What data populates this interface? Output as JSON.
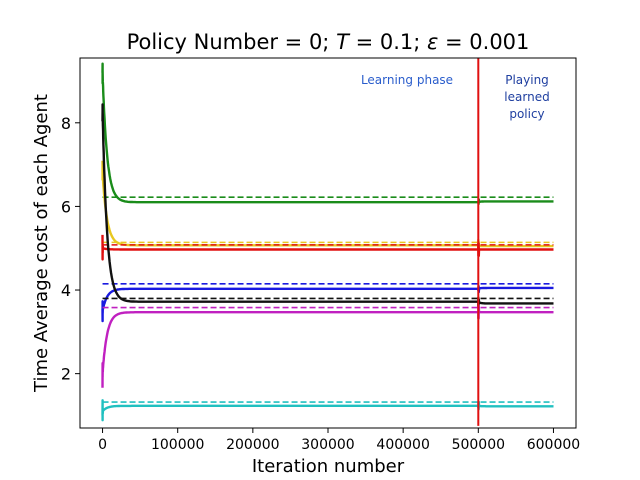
{
  "chart_data": {
    "type": "line",
    "title": "Policy Number = 0; T = 0.1; ε = 0.001",
    "title_parts": {
      "prefix": "Policy Number = 0; ",
      "T_symbol": "T",
      "T_value": " = 0.1; ",
      "eps_symbol": "ε",
      "eps_value": " = 0.001"
    },
    "xlabel": "Iteration number",
    "ylabel": "Time Average cost of each Agent",
    "xlim": [
      -30000,
      630000
    ],
    "ylim": [
      0.7,
      9.55
    ],
    "xticks": [
      0,
      100000,
      200000,
      300000,
      400000,
      500000,
      600000
    ],
    "xtick_labels": [
      "0",
      "100000",
      "200000",
      "300000",
      "400000",
      "500000",
      "600000"
    ],
    "yticks": [
      2,
      4,
      6,
      8
    ],
    "ytick_labels": [
      "2",
      "4",
      "6",
      "8"
    ],
    "grid": false,
    "legend": "none",
    "annotations": [
      {
        "text": "Learning phase",
        "color": "#2a5dcc"
      },
      {
        "text": "Playing",
        "color": "#1f3fa0"
      },
      {
        "text": "learned",
        "color": "#1f3fa0"
      },
      {
        "text": "policy",
        "color": "#1f3fa0"
      }
    ],
    "phase_boundary_x": 500000,
    "phase_boundary_color": "#e01010",
    "series": [
      {
        "color": "#1a8c1a",
        "start": 9.2,
        "asymptote": 6.1,
        "shift": 6.12,
        "dashed": 6.22
      },
      {
        "color": "#e8c820",
        "start": 6.8,
        "asymptote": 5.07,
        "shift": 5.05,
        "dashed": 5.14
      },
      {
        "color": "#e01010",
        "start": 5.0,
        "asymptote": 4.97,
        "shift": 4.97,
        "dashed": 5.08
      },
      {
        "color": "#1a1ae0",
        "start": 3.5,
        "asymptote": 4.03,
        "shift": 4.05,
        "dashed": 4.15
      },
      {
        "color": "#111111",
        "start": 8.3,
        "asymptote": 3.72,
        "shift": 3.68,
        "dashed": 3.8
      },
      {
        "color": "#c020c0",
        "start": 2.0,
        "asymptote": 3.47,
        "shift": 3.47,
        "dashed": 3.58
      },
      {
        "color": "#20c0c0",
        "start": 1.1,
        "asymptote": 1.23,
        "shift": 1.22,
        "dashed": 1.32
      }
    ]
  }
}
